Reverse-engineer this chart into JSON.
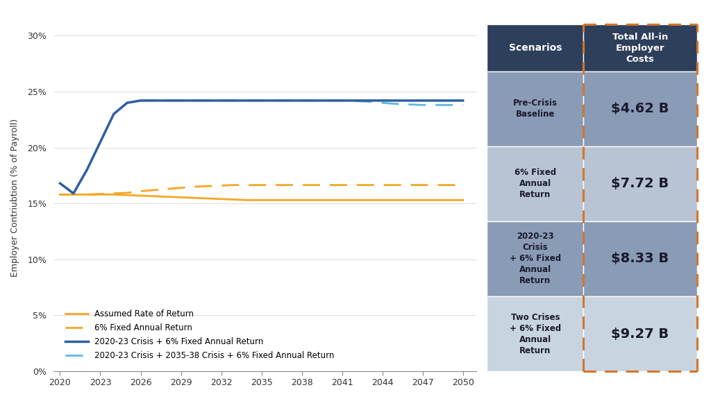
{
  "ylabel": "Employer Contriubtion (% of Payroll)",
  "years": [
    2020,
    2021,
    2022,
    2023,
    2024,
    2025,
    2026,
    2027,
    2028,
    2029,
    2030,
    2031,
    2032,
    2033,
    2034,
    2035,
    2036,
    2037,
    2038,
    2039,
    2040,
    2041,
    2042,
    2043,
    2044,
    2045,
    2046,
    2047,
    2048,
    2049,
    2050
  ],
  "line1": [
    15.8,
    15.8,
    15.8,
    15.8,
    15.8,
    15.75,
    15.7,
    15.65,
    15.6,
    15.55,
    15.5,
    15.45,
    15.4,
    15.35,
    15.3,
    15.3,
    15.3,
    15.3,
    15.3,
    15.3,
    15.3,
    15.3,
    15.3,
    15.3,
    15.3,
    15.3,
    15.3,
    15.3,
    15.3,
    15.3,
    15.3
  ],
  "line2": [
    15.8,
    15.8,
    15.8,
    15.85,
    15.9,
    15.95,
    16.1,
    16.2,
    16.3,
    16.4,
    16.5,
    16.55,
    16.6,
    16.65,
    16.65,
    16.65,
    16.65,
    16.65,
    16.65,
    16.65,
    16.65,
    16.65,
    16.65,
    16.65,
    16.65,
    16.65,
    16.65,
    16.65,
    16.65,
    16.65,
    16.65
  ],
  "line3": [
    16.8,
    15.9,
    18.0,
    20.5,
    23.0,
    24.0,
    24.2,
    24.2,
    24.2,
    24.2,
    24.2,
    24.2,
    24.2,
    24.2,
    24.2,
    24.2,
    24.2,
    24.2,
    24.2,
    24.2,
    24.2,
    24.2,
    24.2,
    24.2,
    24.2,
    24.2,
    24.2,
    24.2,
    24.2,
    24.2,
    24.2
  ],
  "line4": [
    16.8,
    15.9,
    18.0,
    20.5,
    23.0,
    24.0,
    24.2,
    24.2,
    24.2,
    24.2,
    24.2,
    24.2,
    24.2,
    24.2,
    24.2,
    24.2,
    24.2,
    24.2,
    24.2,
    24.2,
    24.2,
    24.2,
    24.15,
    24.1,
    24.0,
    23.9,
    23.85,
    23.8,
    23.8,
    23.8,
    23.8
  ],
  "color_gold": "#F5A623",
  "color_blue_dark": "#2E5FA3",
  "color_blue_light": "#5BB8E8",
  "xlim": [
    2019.5,
    2051
  ],
  "ylim": [
    0,
    31
  ],
  "yticks": [
    0,
    5,
    10,
    15,
    20,
    25,
    30
  ],
  "xticks": [
    2020,
    2023,
    2026,
    2029,
    2032,
    2035,
    2038,
    2041,
    2044,
    2047,
    2050
  ],
  "legend_labels": [
    "Assumed Rate of Return",
    "6% Fixed Annual Return",
    "2020-23 Crisis + 6% Fixed Annual Return",
    "2020-23 Crisis + 2035-38 Crisis + 6% Fixed Annual Return"
  ],
  "table_header_bg": "#2E3F5C",
  "table_row_bgs": [
    "#8A9BB5",
    "#B8C4D4",
    "#8A9BB5",
    "#C8D4E0"
  ],
  "table_header_text": "#FFFFFF",
  "table_scenarios": [
    "Pre-Crisis\nBaseline",
    "6% Fixed\nAnnual\nReturn",
    "2020-23\nCrisis\n+ 6% Fixed\nAnnual\nReturn",
    "Two Crises\n+ 6% Fixed\nAnnual\nReturn"
  ],
  "table_values": [
    "$4.62 B",
    "$7.72 B",
    "$8.33 B",
    "$9.27 B"
  ],
  "table_col1_header": "Scenarios",
  "table_col2_header": "Total All-in\nEmployer\nCosts",
  "orange_border": "#D4762A",
  "bg_color": "#FFFFFF"
}
